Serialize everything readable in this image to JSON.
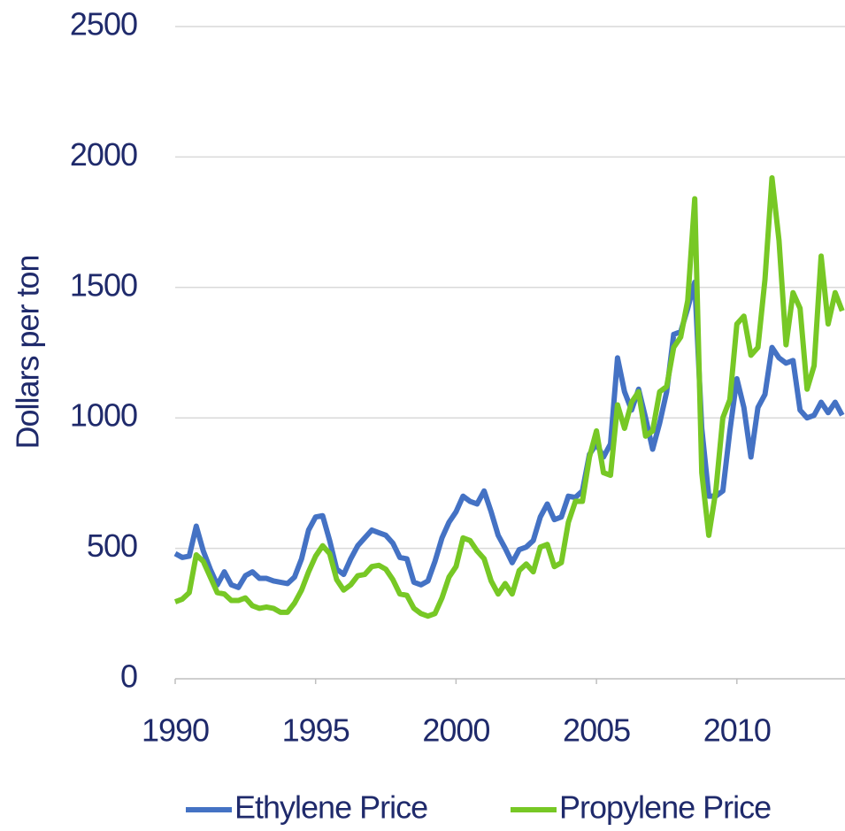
{
  "chart_data": {
    "type": "line",
    "y_label": "Dollars per ton",
    "x": [
      1990,
      1990.25,
      1990.5,
      1990.75,
      1991,
      1991.25,
      1991.5,
      1991.75,
      1992,
      1992.25,
      1992.5,
      1992.75,
      1993,
      1993.25,
      1993.5,
      1993.75,
      1994,
      1994.25,
      1994.5,
      1994.75,
      1995,
      1995.25,
      1995.5,
      1995.75,
      1996,
      1996.25,
      1996.5,
      1996.75,
      1997,
      1997.25,
      1997.5,
      1997.75,
      1998,
      1998.25,
      1998.5,
      1998.75,
      1999,
      1999.25,
      1999.5,
      1999.75,
      2000,
      2000.25,
      2000.5,
      2000.75,
      2001,
      2001.25,
      2001.5,
      2001.75,
      2002,
      2002.25,
      2002.5,
      2002.75,
      2003,
      2003.25,
      2003.5,
      2003.75,
      2004,
      2004.25,
      2004.5,
      2004.75,
      2005,
      2005.25,
      2005.5,
      2005.75,
      2006,
      2006.25,
      2006.5,
      2006.75,
      2007,
      2007.25,
      2007.5,
      2007.75,
      2008,
      2008.25,
      2008.5,
      2008.75,
      2009,
      2009.25,
      2009.5,
      2009.75,
      2010,
      2010.25,
      2010.5,
      2010.75,
      2011,
      2011.25,
      2011.5,
      2011.75,
      2012,
      2012.25,
      2012.5,
      2012.75,
      2013,
      2013.25,
      2013.5,
      2013.75
    ],
    "series": [
      {
        "name": "Ethylene Price",
        "color": "#4472c4",
        "values": [
          480,
          465,
          470,
          585,
          490,
          420,
          360,
          410,
          360,
          350,
          395,
          410,
          385,
          385,
          375,
          370,
          365,
          390,
          460,
          570,
          620,
          625,
          530,
          420,
          400,
          460,
          510,
          540,
          570,
          560,
          550,
          520,
          465,
          460,
          370,
          360,
          375,
          450,
          540,
          600,
          640,
          700,
          680,
          670,
          720,
          640,
          550,
          500,
          445,
          495,
          505,
          530,
          620,
          670,
          610,
          620,
          700,
          695,
          720,
          860,
          900,
          850,
          900,
          1230,
          1100,
          1030,
          1110,
          1000,
          880,
          980,
          1100,
          1320,
          1330,
          1420,
          1520,
          960,
          700,
          700,
          720,
          950,
          1150,
          1040,
          850,
          1040,
          1090,
          1270,
          1230,
          1210,
          1220,
          1030,
          1000,
          1010,
          1060,
          1020,
          1060,
          1010
        ]
      },
      {
        "name": "Propylene Price",
        "color": "#77c825",
        "values": [
          295,
          305,
          330,
          475,
          450,
          390,
          330,
          325,
          300,
          300,
          310,
          280,
          270,
          275,
          270,
          255,
          255,
          290,
          340,
          410,
          470,
          510,
          480,
          380,
          340,
          360,
          395,
          400,
          430,
          435,
          420,
          380,
          325,
          320,
          270,
          250,
          240,
          250,
          310,
          390,
          430,
          540,
          530,
          490,
          460,
          375,
          325,
          365,
          325,
          415,
          440,
          410,
          505,
          515,
          430,
          445,
          600,
          680,
          680,
          850,
          950,
          790,
          780,
          1050,
          960,
          1060,
          1100,
          930,
          950,
          1100,
          1120,
          1270,
          1310,
          1450,
          1840,
          790,
          550,
          720,
          1000,
          1070,
          1360,
          1390,
          1240,
          1270,
          1530,
          1920,
          1680,
          1280,
          1480,
          1420,
          1110,
          1200,
          1620,
          1360,
          1480,
          1410
        ]
      }
    ],
    "xlim": [
      1990,
      2013.85
    ],
    "xticks": [
      1990,
      1995,
      2000,
      2005,
      2010
    ],
    "ylim": [
      0,
      2500
    ],
    "yticks": [
      0,
      500,
      1000,
      1500,
      2000,
      2500
    ],
    "grid": true,
    "legend": "bottom"
  }
}
